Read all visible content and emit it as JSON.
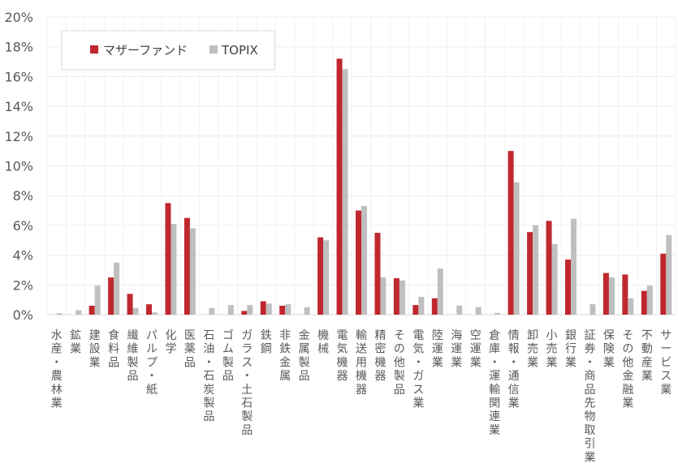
{
  "chart_data": {
    "type": "bar",
    "categories": [
      "水産・農林業",
      "鉱業",
      "建設業",
      "食料品",
      "繊維製品",
      "パルプ・紙",
      "化学",
      "医薬品",
      "石油・石炭製品",
      "ゴム製品",
      "ガラス・土石製品",
      "鉄鋼",
      "非鉄金属",
      "金属製品",
      "機械",
      "電気機器",
      "輸送用機器",
      "精密機器",
      "その他製品",
      "電気・ガス業",
      "陸運業",
      "海運業",
      "空運業",
      "倉庫・運輸関連業",
      "情報・通信業",
      "卸売業",
      "小売業",
      "銀行業",
      "証券・商品先物取引業",
      "保険業",
      "その他金融業",
      "不動産業",
      "サービス業"
    ],
    "series": [
      {
        "name": "マザーファンド",
        "color": "#c0282d",
        "values": [
          0,
          0,
          0.6,
          2.5,
          1.4,
          0.7,
          7.5,
          6.5,
          0,
          0,
          0.25,
          0.9,
          0.6,
          0,
          5.2,
          17.2,
          7.0,
          5.5,
          2.45,
          0.65,
          1.1,
          0,
          0,
          0,
          11.0,
          5.55,
          6.3,
          3.7,
          0,
          2.8,
          2.7,
          1.6,
          4.1
        ]
      },
      {
        "name": "TOPIX",
        "color": "#bfbfbf",
        "values": [
          0.1,
          0.3,
          1.95,
          3.5,
          0.45,
          0.15,
          6.1,
          5.8,
          0.45,
          0.65,
          0.65,
          0.75,
          0.7,
          0.5,
          5.0,
          16.5,
          7.3,
          2.5,
          2.3,
          1.2,
          3.1,
          0.6,
          0.5,
          0.12,
          8.9,
          6.0,
          4.75,
          6.45,
          0.7,
          2.5,
          1.1,
          1.95,
          5.35
        ]
      }
    ],
    "yticks": [
      "0%",
      "2%",
      "4%",
      "6%",
      "8%",
      "10%",
      "12%",
      "14%",
      "16%",
      "18%",
      "20%"
    ],
    "ylim": [
      0,
      20
    ],
    "grid": true,
    "legend_position": "top-left"
  }
}
